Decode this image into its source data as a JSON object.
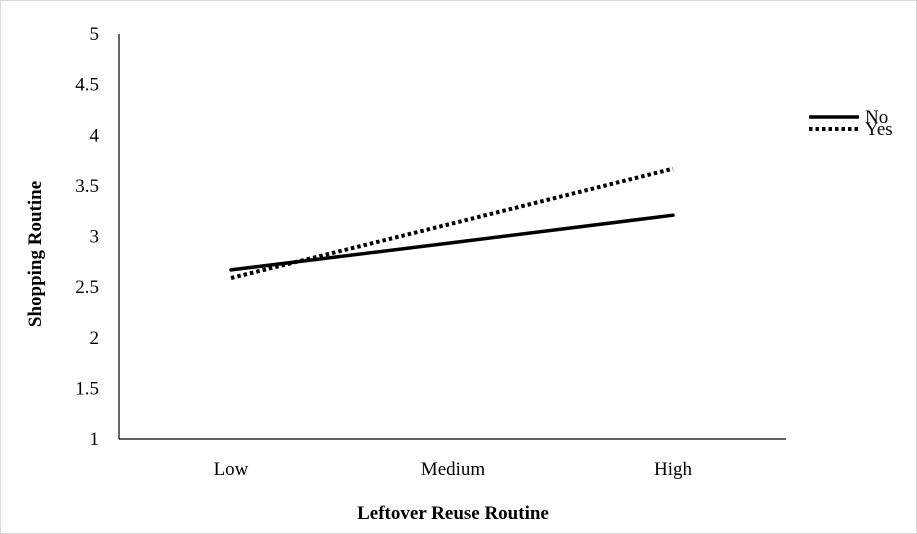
{
  "chart_data": {
    "type": "line",
    "categories": [
      "Low",
      "Medium",
      "High"
    ],
    "series": [
      {
        "name": "No",
        "values": [
          2.67,
          2.94,
          3.21
        ],
        "style": "solid",
        "color": "#000000"
      },
      {
        "name": "Yes",
        "values": [
          2.59,
          3.13,
          3.67
        ],
        "style": "dotted",
        "color": "#000000"
      }
    ],
    "xlabel": "Leftover Reuse Routine",
    "ylabel": "Shopping Routine",
    "ylim": [
      1,
      5
    ],
    "yticks": [
      "1",
      "1.5",
      "2",
      "2.5",
      "3",
      "3.5",
      "4",
      "4.5",
      "5"
    ],
    "grid": false,
    "legend_position": "top-right"
  }
}
